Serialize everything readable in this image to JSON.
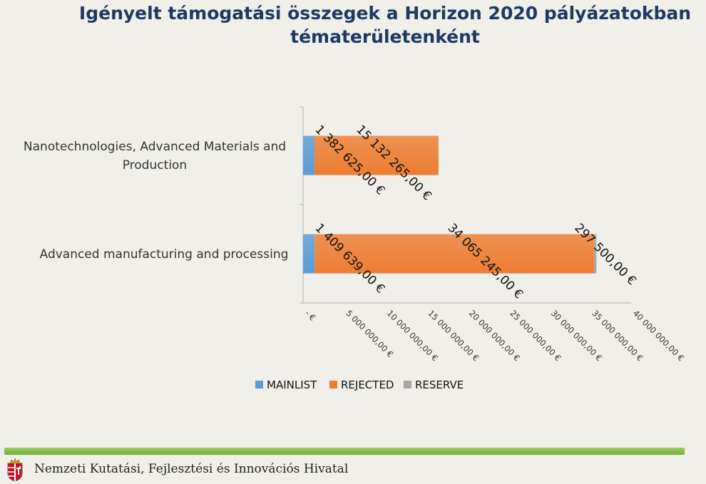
{
  "title": {
    "line1": "Igényelt támogatási összegek a Horizon 2020 pályázatokban",
    "line2": "tématerületenként"
  },
  "colors": {
    "mainlist": "#5b9bd5",
    "rejected": "#ed7d31",
    "reserve": "#a5a5a5"
  },
  "chart_data": {
    "type": "bar",
    "orientation": "horizontal",
    "stacked": true,
    "categories": [
      "Nanotechnologies, Advanced Materials and Production",
      "Advanced manufacturing and processing"
    ],
    "category_lines": [
      [
        "Nanotechnologies, Advanced Materials and",
        "Production"
      ],
      [
        "Advanced manufacturing and processing"
      ]
    ],
    "series": [
      {
        "name": "MAINLIST",
        "values": [
          1382625,
          1409639
        ],
        "labels": [
          "1 382 625,00 €",
          "1 409 639,00 €"
        ]
      },
      {
        "name": "REJECTED",
        "values": [
          15132265,
          34065245
        ],
        "labels": [
          "15 132 265,00 €",
          "34 065 245,00 €"
        ]
      },
      {
        "name": "RESERVE",
        "values": [
          0,
          297500
        ],
        "labels": [
          "",
          "297 500,00 €"
        ]
      }
    ],
    "xlim": [
      0,
      40000000
    ],
    "x_ticks": [
      "-   €",
      "5 000 000,00 €",
      "10 000 000,00 €",
      "15 000 000,00 €",
      "20 000 000,00 €",
      "25 000 000,00 €",
      "30 000 000,00 €",
      "35 000 000,00 €",
      "40 000 000,00 €"
    ],
    "legend_position": "bottom",
    "grid": false
  },
  "footer": {
    "text": "Nemzeti Kutatási, Fejlesztési és Innovációs Hivatal"
  }
}
